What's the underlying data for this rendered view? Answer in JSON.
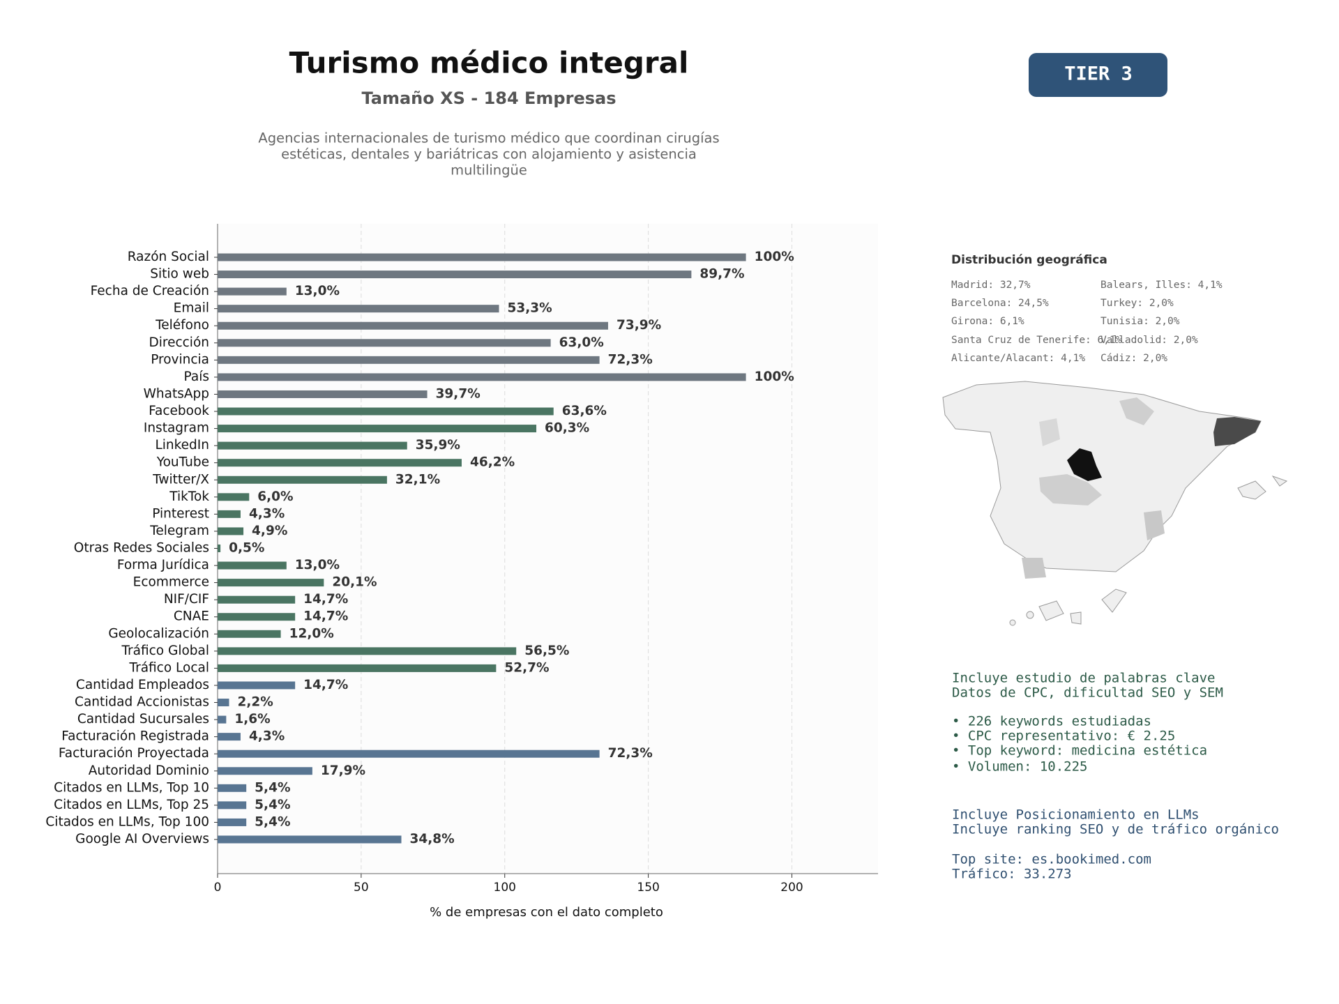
{
  "chart_data": {
    "type": "hbar",
    "title": "Turismo médico integral",
    "subtitle": "Tamaño XS - 184 Empresas",
    "description_lines": [
      "Agencias internacionales de turismo médico que coordinan cirugías",
      "estéticas, dentales y bariátricas con alojamiento y asistencia",
      "multilingüe"
    ],
    "categories": [
      "Razón Social",
      "Sitio web",
      "Fecha de Creación",
      "Email",
      "Teléfono",
      "Dirección",
      "Provincia",
      "País",
      "WhatsApp",
      "Facebook",
      "Instagram",
      "LinkedIn",
      "YouTube",
      "Twitter/X",
      "TikTok",
      "Pinterest",
      "Telegram",
      "Otras Redes Sociales",
      "Forma Jurídica",
      "Ecommerce",
      "NIF/CIF",
      "CNAE",
      "Geolocalización",
      "Tráfico Global",
      "Tráfico Local",
      "Cantidad Empleados",
      "Cantidad Accionistas",
      "Cantidad Sucursales",
      "Facturación Registrada",
      "Facturación Proyectada",
      "Autoridad Dominio",
      "Citados en LLMs, Top 10",
      "Citados en LLMs, Top 25",
      "Citados en LLMs, Top 100",
      "Google AI Overviews"
    ],
    "values": [
      184,
      165,
      24,
      98,
      136,
      116,
      133,
      184,
      73,
      117,
      111,
      66,
      85,
      59,
      11,
      8,
      9,
      1,
      24,
      37,
      27,
      27,
      22,
      104,
      97,
      27,
      4,
      3,
      8,
      133,
      33,
      10,
      10,
      10,
      64
    ],
    "value_labels": [
      "100%",
      "89,7%",
      "13,0%",
      "53,3%",
      "73,9%",
      "63,0%",
      "72,3%",
      "100%",
      "39,7%",
      "63,6%",
      "60,3%",
      "35,9%",
      "46,2%",
      "32,1%",
      "6,0%",
      "4,3%",
      "4,9%",
      "0,5%",
      "13,0%",
      "20,1%",
      "14,7%",
      "14,7%",
      "12,0%",
      "56,5%",
      "52,7%",
      "14,7%",
      "2,2%",
      "1,6%",
      "4,3%",
      "72,3%",
      "17,9%",
      "5,4%",
      "5,4%",
      "5,4%",
      "34,8%"
    ],
    "colors": [
      "#6e7780",
      "#6e7780",
      "#6e7780",
      "#6e7780",
      "#6e7780",
      "#6e7780",
      "#6e7780",
      "#6e7780",
      "#6e7780",
      "#4a7562",
      "#4a7562",
      "#4a7562",
      "#4a7562",
      "#4a7562",
      "#4a7562",
      "#4a7562",
      "#4a7562",
      "#4a7562",
      "#4a7562",
      "#4a7562",
      "#4a7562",
      "#4a7562",
      "#4a7562",
      "#4a7562",
      "#4a7562",
      "#587592",
      "#587592",
      "#587592",
      "#587592",
      "#587592",
      "#587592",
      "#587592",
      "#587592",
      "#587592",
      "#587592"
    ],
    "xlabel": "% de empresas con el dato completo",
    "xlim": [
      0,
      230
    ],
    "xticks": [
      0,
      50,
      100,
      150,
      200
    ],
    "grid": true
  },
  "tier": "TIER 3",
  "geo": {
    "title": "Distribución geográfica",
    "items": [
      [
        "Madrid: 32,7%",
        "Balears, Illes: 4,1%"
      ],
      [
        "Barcelona: 24,5%",
        "Turkey: 2,0%"
      ],
      [
        "Girona: 6,1%",
        "Tunisia: 2,0%"
      ],
      [
        "Santa Cruz de Tenerife: 6,1%",
        "Valladolid: 2,0%"
      ],
      [
        "Alicante/Alacant: 4,1%",
        "Cádiz: 2,0%"
      ]
    ]
  },
  "seo": [
    "Incluye estudio de palabras clave",
    "Datos de CPC, dificultad SEO y SEM",
    "• 226 keywords estudiadas",
    "• CPC representativo: € 2.25",
    "• Top keyword: medicina estética",
    "• Volumen: 10.225"
  ],
  "llm": [
    "Incluye Posicionamiento en LLMs",
    "Incluye ranking SEO y de tráfico orgánico",
    "Top site: es.bookimed.com",
    "Tráfico: 33.273"
  ]
}
